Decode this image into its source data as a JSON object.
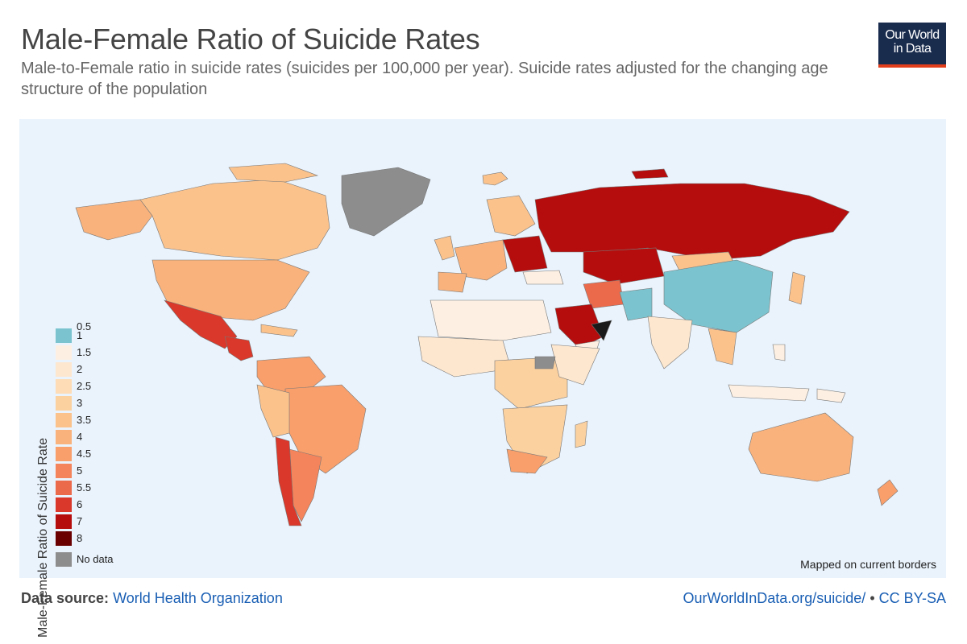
{
  "title": "Male-Female Ratio of Suicide Rates",
  "subtitle": "Male-to-Female ratio in suicide rates (suicides per 100,000 per year). Suicide rates adjusted for the changing age structure of the population",
  "logo": {
    "line1": "Our World",
    "line2": "in Data"
  },
  "legend": {
    "axis_label": "Male-Female Ratio of Suicide Rate",
    "items": [
      {
        "label": "0.5",
        "color": null
      },
      {
        "label": "1",
        "color": "#7bc4cf"
      },
      {
        "label": "1.5",
        "color": "#fdf0e3"
      },
      {
        "label": "2",
        "color": "#fde7cf"
      },
      {
        "label": "2.5",
        "color": "#fddcb6"
      },
      {
        "label": "3",
        "color": "#fcd1a0"
      },
      {
        "label": "3.5",
        "color": "#fbc28c"
      },
      {
        "label": "4",
        "color": "#f9b27c"
      },
      {
        "label": "4.5",
        "color": "#f89f6c"
      },
      {
        "label": "5",
        "color": "#f4845b"
      },
      {
        "label": "5.5",
        "color": "#ec6a4c"
      },
      {
        "label": "6",
        "color": "#d9382a"
      },
      {
        "label": "7",
        "color": "#b50d0d"
      },
      {
        "label": "8",
        "color": "#6a0000"
      }
    ],
    "no_data": {
      "label": "No data",
      "color": "#8d8d8d"
    }
  },
  "map_note": "Mapped on current borders",
  "footer": {
    "source_label": "Data source:",
    "source_link": "World Health Organization",
    "url": "OurWorldInData.org/suicide/",
    "separator": " • ",
    "license": "CC BY-SA"
  }
}
